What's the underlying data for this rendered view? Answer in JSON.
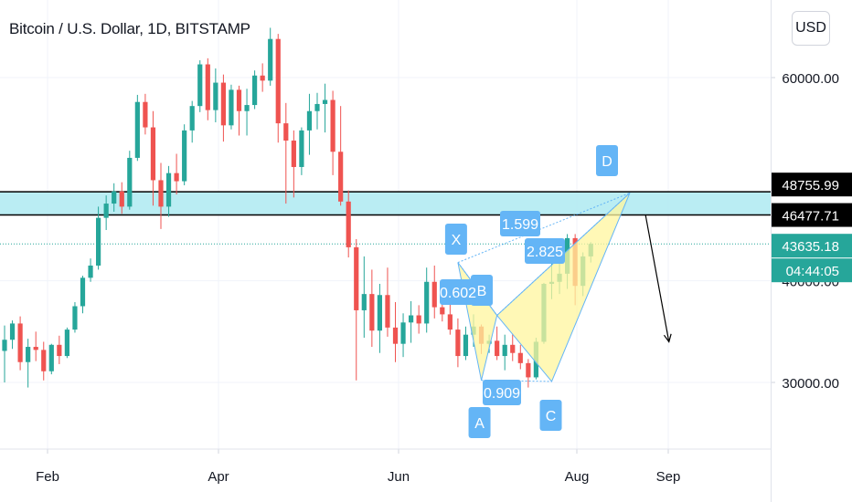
{
  "title": "Bitcoin / U.S. Dollar, 1D, BITSTAMP",
  "currency_button": "USD",
  "colors": {
    "up": "#26a69a",
    "down": "#ef5350",
    "zone_fill": "#b2ebf2",
    "harmonic_fill": "#fff59d",
    "label_fill": "#64b5f6",
    "current_price": "#26a69a"
  },
  "chart_data": {
    "type": "candlestick",
    "title": "Bitcoin / U.S. Dollar, 1D, BITSTAMP",
    "x_ticks": [
      "Feb",
      "Apr",
      "Jun",
      "Aug",
      "Sep"
    ],
    "y_ticks": [
      30000,
      40000,
      60000
    ],
    "y_tick_labels": [
      "30000.00",
      "40000.00",
      "60000.00"
    ],
    "ylim": [
      23500,
      66000
    ],
    "candles": [
      [
        33100,
        35600,
        30000,
        34200
      ],
      [
        34200,
        36100,
        33300,
        35800
      ],
      [
        35800,
        36500,
        31200,
        32000
      ],
      [
        32000,
        34300,
        29500,
        33500
      ],
      [
        33500,
        35000,
        32100,
        33200
      ],
      [
        33200,
        34000,
        30200,
        31100
      ],
      [
        31100,
        33800,
        30800,
        33700
      ],
      [
        33700,
        34600,
        31800,
        32600
      ],
      [
        32600,
        35400,
        32400,
        35200
      ],
      [
        35200,
        37900,
        34900,
        37500
      ],
      [
        37500,
        40500,
        36800,
        40300
      ],
      [
        40300,
        42200,
        39900,
        41500
      ],
      [
        41500,
        47300,
        41100,
        46200
      ],
      [
        46200,
        48400,
        45000,
        47600
      ],
      [
        47600,
        49600,
        46800,
        48800
      ],
      [
        48800,
        49700,
        46600,
        47300
      ],
      [
        47300,
        52800,
        47000,
        52100
      ],
      [
        52100,
        58300,
        51800,
        57600
      ],
      [
        57600,
        58400,
        54400,
        55100
      ],
      [
        55100,
        56700,
        47400,
        49900
      ],
      [
        49900,
        51600,
        45100,
        47300
      ],
      [
        47300,
        51300,
        46300,
        50600
      ],
      [
        50600,
        52500,
        48500,
        49800
      ],
      [
        49800,
        55400,
        49400,
        54800
      ],
      [
        54800,
        57700,
        53600,
        57200
      ],
      [
        57200,
        61700,
        56600,
        61300
      ],
      [
        61300,
        61900,
        55800,
        56800
      ],
      [
        56800,
        60900,
        55600,
        59500
      ],
      [
        59500,
        60300,
        53700,
        55300
      ],
      [
        55300,
        59300,
        54900,
        58800
      ],
      [
        58800,
        59200,
        54300,
        56700
      ],
      [
        56700,
        58900,
        54300,
        57300
      ],
      [
        57300,
        60700,
        56900,
        60200
      ],
      [
        60200,
        61400,
        58600,
        59700
      ],
      [
        59700,
        64900,
        59200,
        63800
      ],
      [
        63800,
        64300,
        53600,
        55500
      ],
      [
        55500,
        57500,
        47600,
        53800
      ],
      [
        53800,
        54800,
        48200,
        51200
      ],
      [
        51200,
        55100,
        50400,
        54800
      ],
      [
        54800,
        58400,
        52400,
        56700
      ],
      [
        56700,
        58500,
        54900,
        57400
      ],
      [
        57400,
        59400,
        54600,
        57800
      ],
      [
        57800,
        58700,
        50400,
        52700
      ],
      [
        52700,
        57200,
        47400,
        47800
      ],
      [
        47800,
        48900,
        42300,
        43300
      ],
      [
        43300,
        44100,
        30200,
        37100
      ],
      [
        37100,
        42400,
        34400,
        38700
      ],
      [
        38700,
        41100,
        33500,
        35100
      ],
      [
        35100,
        39700,
        32900,
        38600
      ],
      [
        38600,
        41300,
        34500,
        35400
      ],
      [
        35400,
        37900,
        32000,
        33800
      ],
      [
        33800,
        36800,
        32500,
        35900
      ],
      [
        35900,
        38000,
        33900,
        36600
      ],
      [
        36600,
        37600,
        34800,
        35800
      ],
      [
        35800,
        41300,
        34900,
        39900
      ],
      [
        39900,
        41500,
        36300,
        37400
      ],
      [
        37400,
        40000,
        36000,
        36700
      ],
      [
        36700,
        38100,
        34700,
        35200
      ],
      [
        35200,
        36300,
        31500,
        32600
      ],
      [
        32600,
        35500,
        32200,
        34700
      ],
      [
        34700,
        36700,
        33500,
        35500
      ],
      [
        35500,
        35700,
        32800,
        33800
      ],
      [
        33800,
        34700,
        32900,
        34100
      ],
      [
        34100,
        35500,
        32200,
        32600
      ],
      [
        32600,
        34700,
        31200,
        33700
      ],
      [
        33700,
        34800,
        32100,
        32900
      ],
      [
        32900,
        33700,
        31300,
        31900
      ],
      [
        31900,
        32300,
        29500,
        30500
      ],
      [
        30500,
        34400,
        30300,
        34000
      ],
      [
        34000,
        39800,
        33800,
        39700
      ],
      [
        39700,
        42200,
        38200,
        39900
      ],
      [
        39900,
        41700,
        38700,
        40700
      ],
      [
        40700,
        44600,
        39200,
        44200
      ],
      [
        44200,
        44600,
        37600,
        39500
      ],
      [
        39500,
        42800,
        38500,
        42400
      ],
      [
        42400,
        43800,
        41800,
        43635
      ]
    ],
    "annotations": {
      "zone_upper": 48755.99,
      "zone_lower": 46477.71,
      "zone_upper_label": "48755.99",
      "zone_lower_label": "46477.71",
      "current_price": 43635.18,
      "current_price_label": "43635.18",
      "countdown": "04:44:05",
      "pattern_points": {
        "X": {
          "index": 58,
          "price": 41800
        },
        "A": {
          "index": 61,
          "price": 30200
        },
        "B": {
          "index": 63,
          "price": 36600
        },
        "C": {
          "index": 70,
          "price": 30100
        },
        "D": {
          "index": 80,
          "price": 48650
        }
      },
      "point_labels": [
        "X",
        "A",
        "B",
        "C",
        "D"
      ],
      "ratios": [
        "0.602",
        "0.909",
        "1.599",
        "2.825"
      ],
      "projection": {
        "from_index": 82,
        "from_price": 46500,
        "to_index": 85,
        "to_price": 34000
      }
    }
  }
}
